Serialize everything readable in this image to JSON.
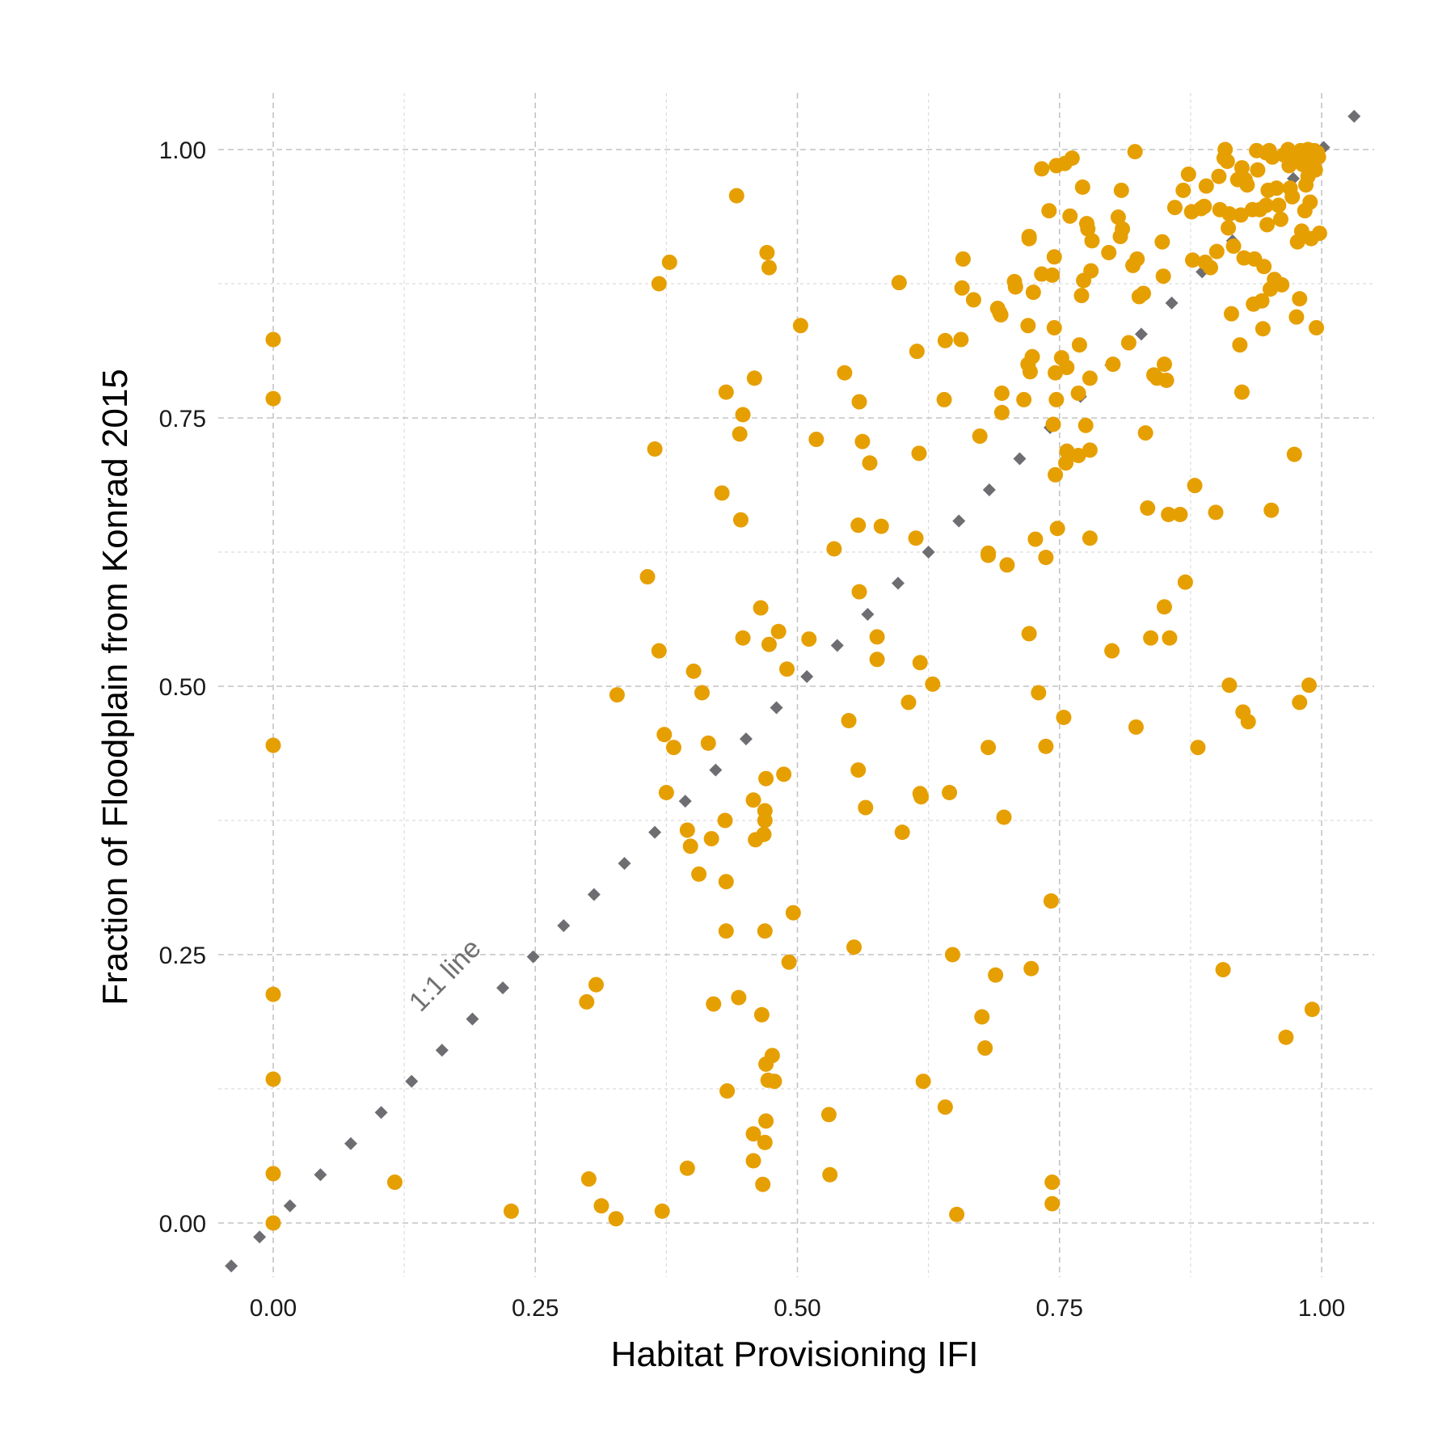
{
  "chart_data": {
    "type": "scatter",
    "xlabel": "Habitat Provisioning IFI",
    "ylabel": "Fraction of Floodplain from Konrad 2015",
    "xlim": [
      -0.05,
      1.05
    ],
    "ylim": [
      -0.05,
      1.05
    ],
    "x_ticks": [
      "0.00",
      "0.25",
      "0.50",
      "0.75",
      "1.00"
    ],
    "y_ticks": [
      "0.00",
      "0.25",
      "0.50",
      "0.75",
      "1.00"
    ],
    "grid": true,
    "point_color": "#E69F00",
    "reference_line_color": "#6e6e72",
    "annotation": "1:1 line",
    "reference_line": [
      [
        -0.04,
        -0.04
      ],
      [
        -0.013,
        -0.013
      ],
      [
        0.016,
        0.016
      ],
      [
        0.045,
        0.045
      ],
      [
        0.074,
        0.074
      ],
      [
        0.103,
        0.103
      ],
      [
        0.132,
        0.132
      ],
      [
        0.161,
        0.161
      ],
      [
        0.19,
        0.19
      ],
      [
        0.219,
        0.219
      ],
      [
        0.248,
        0.248
      ],
      [
        0.277,
        0.277
      ],
      [
        0.306,
        0.306
      ],
      [
        0.335,
        0.335
      ],
      [
        0.364,
        0.364
      ],
      [
        0.393,
        0.393
      ],
      [
        0.422,
        0.422
      ],
      [
        0.451,
        0.451
      ],
      [
        0.48,
        0.48
      ],
      [
        0.509,
        0.509
      ],
      [
        0.538,
        0.538
      ],
      [
        0.567,
        0.567
      ],
      [
        0.596,
        0.596
      ],
      [
        0.625,
        0.625
      ],
      [
        0.654,
        0.654
      ],
      [
        0.683,
        0.683
      ],
      [
        0.712,
        0.712
      ],
      [
        0.741,
        0.741
      ],
      [
        0.77,
        0.77
      ],
      [
        0.799,
        0.799
      ],
      [
        0.828,
        0.828
      ],
      [
        0.857,
        0.857
      ],
      [
        0.886,
        0.886
      ],
      [
        0.915,
        0.915
      ],
      [
        0.944,
        0.944
      ],
      [
        0.973,
        0.973
      ],
      [
        1.002,
        1.002
      ],
      [
        1.031,
        1.031
      ]
    ],
    "points": [
      [
        0.0,
        0.823
      ],
      [
        0.0,
        0.768
      ],
      [
        0.0,
        0.445
      ],
      [
        0.0,
        0.213
      ],
      [
        0.0,
        0.134
      ],
      [
        0.0,
        0.046
      ],
      [
        0.0,
        0.0
      ],
      [
        0.116,
        0.038
      ],
      [
        0.227,
        0.011
      ],
      [
        0.299,
        0.206
      ],
      [
        0.301,
        0.041
      ],
      [
        0.308,
        0.222
      ],
      [
        0.313,
        0.016
      ],
      [
        0.327,
        0.004
      ],
      [
        0.328,
        0.492
      ],
      [
        0.357,
        0.602
      ],
      [
        0.364,
        0.721
      ],
      [
        0.368,
        0.875
      ],
      [
        0.368,
        0.533
      ],
      [
        0.371,
        0.011
      ],
      [
        0.373,
        0.455
      ],
      [
        0.375,
        0.401
      ],
      [
        0.378,
        0.895
      ],
      [
        0.382,
        0.443
      ],
      [
        0.395,
        0.366
      ],
      [
        0.395,
        0.051
      ],
      [
        0.398,
        0.351
      ],
      [
        0.401,
        0.514
      ],
      [
        0.406,
        0.325
      ],
      [
        0.409,
        0.494
      ],
      [
        0.415,
        0.447
      ],
      [
        0.418,
        0.358
      ],
      [
        0.42,
        0.204
      ],
      [
        0.428,
        0.68
      ],
      [
        0.431,
        0.375
      ],
      [
        0.432,
        0.774
      ],
      [
        0.432,
        0.318
      ],
      [
        0.432,
        0.272
      ],
      [
        0.433,
        0.123
      ],
      [
        0.442,
        0.957
      ],
      [
        0.444,
        0.21
      ],
      [
        0.445,
        0.735
      ],
      [
        0.446,
        0.655
      ],
      [
        0.448,
        0.753
      ],
      [
        0.448,
        0.545
      ],
      [
        0.458,
        0.394
      ],
      [
        0.458,
        0.083
      ],
      [
        0.458,
        0.058
      ],
      [
        0.459,
        0.787
      ],
      [
        0.46,
        0.357
      ],
      [
        0.465,
        0.573
      ],
      [
        0.466,
        0.194
      ],
      [
        0.467,
        0.036
      ],
      [
        0.468,
        0.362
      ],
      [
        0.469,
        0.384
      ],
      [
        0.469,
        0.375
      ],
      [
        0.469,
        0.272
      ],
      [
        0.469,
        0.075
      ],
      [
        0.47,
        0.414
      ],
      [
        0.47,
        0.148
      ],
      [
        0.47,
        0.095
      ],
      [
        0.471,
        0.904
      ],
      [
        0.472,
        0.133
      ],
      [
        0.473,
        0.89
      ],
      [
        0.473,
        0.539
      ],
      [
        0.476,
        0.156
      ],
      [
        0.478,
        0.132
      ],
      [
        0.482,
        0.551
      ],
      [
        0.487,
        0.418
      ],
      [
        0.49,
        0.516
      ],
      [
        0.492,
        0.243
      ],
      [
        0.496,
        0.289
      ],
      [
        0.503,
        0.836
      ],
      [
        0.511,
        0.544
      ],
      [
        0.518,
        0.73
      ],
      [
        0.53,
        0.101
      ],
      [
        0.531,
        0.045
      ],
      [
        0.535,
        0.628
      ],
      [
        0.545,
        0.792
      ],
      [
        0.549,
        0.468
      ],
      [
        0.554,
        0.257
      ],
      [
        0.558,
        0.65
      ],
      [
        0.558,
        0.422
      ],
      [
        0.559,
        0.765
      ],
      [
        0.559,
        0.588
      ],
      [
        0.562,
        0.728
      ],
      [
        0.565,
        0.387
      ],
      [
        0.569,
        0.708
      ],
      [
        0.597,
        0.876
      ],
      [
        0.6,
        0.364
      ],
      [
        0.576,
        0.546
      ],
      [
        0.576,
        0.525
      ],
      [
        0.58,
        0.649
      ],
      [
        0.606,
        0.485
      ],
      [
        0.613,
        0.638
      ],
      [
        0.614,
        0.812
      ],
      [
        0.616,
        0.717
      ],
      [
        0.617,
        0.522
      ],
      [
        0.617,
        0.4
      ],
      [
        0.618,
        0.397
      ],
      [
        0.62,
        0.132
      ],
      [
        0.629,
        0.502
      ],
      [
        0.64,
        0.767
      ],
      [
        0.641,
        0.822
      ],
      [
        0.641,
        0.108
      ],
      [
        0.645,
        0.401
      ],
      [
        0.648,
        0.25
      ],
      [
        0.652,
        0.008
      ],
      [
        0.656,
        0.823
      ],
      [
        0.657,
        0.871
      ],
      [
        0.658,
        0.898
      ],
      [
        0.668,
        0.86
      ],
      [
        0.674,
        0.733
      ],
      [
        0.676,
        0.192
      ],
      [
        0.679,
        0.163
      ],
      [
        0.682,
        0.624
      ],
      [
        0.682,
        0.622
      ],
      [
        0.682,
        0.443
      ],
      [
        0.689,
        0.231
      ],
      [
        0.691,
        0.852
      ],
      [
        0.693,
        0.848
      ],
      [
        0.694,
        0.846
      ],
      [
        0.695,
        0.773
      ],
      [
        0.695,
        0.755
      ],
      [
        0.697,
        0.378
      ],
      [
        0.7,
        0.613
      ],
      [
        0.707,
        0.877
      ],
      [
        0.708,
        0.872
      ],
      [
        0.716,
        0.767
      ],
      [
        0.72,
        0.836
      ],
      [
        0.72,
        0.8
      ],
      [
        0.721,
        0.919
      ],
      [
        0.721,
        0.917
      ],
      [
        0.721,
        0.549
      ],
      [
        0.722,
        0.793
      ],
      [
        0.723,
        0.237
      ],
      [
        0.724,
        0.807
      ],
      [
        0.725,
        0.867
      ],
      [
        0.727,
        0.637
      ],
      [
        0.73,
        0.494
      ],
      [
        0.733,
        0.982
      ],
      [
        0.733,
        0.884
      ],
      [
        0.737,
        0.62
      ],
      [
        0.737,
        0.444
      ],
      [
        0.74,
        0.943
      ],
      [
        0.742,
        0.3
      ],
      [
        0.743,
        0.883
      ],
      [
        0.743,
        0.038
      ],
      [
        0.743,
        0.018
      ],
      [
        0.744,
        0.744
      ],
      [
        0.745,
        0.834
      ],
      [
        0.745,
        0.9
      ],
      [
        0.746,
        0.792
      ],
      [
        0.746,
        0.697
      ],
      [
        0.747,
        0.985
      ],
      [
        0.747,
        0.767
      ],
      [
        0.748,
        0.647
      ],
      [
        0.752,
        0.806
      ],
      [
        0.754,
        0.471
      ],
      [
        0.755,
        0.987
      ],
      [
        0.756,
        0.708
      ],
      [
        0.757,
        0.719
      ],
      [
        0.757,
        0.797
      ],
      [
        0.76,
        0.938
      ],
      [
        0.762,
        0.992
      ],
      [
        0.768,
        0.715
      ],
      [
        0.768,
        0.773
      ],
      [
        0.769,
        0.818
      ],
      [
        0.771,
        0.864
      ],
      [
        0.772,
        0.965
      ],
      [
        0.773,
        0.878
      ],
      [
        0.775,
        0.743
      ],
      [
        0.776,
        0.931
      ],
      [
        0.777,
        0.926
      ],
      [
        0.779,
        0.638
      ],
      [
        0.779,
        0.787
      ],
      [
        0.779,
        0.72
      ],
      [
        0.78,
        0.887
      ],
      [
        0.781,
        0.915
      ],
      [
        0.797,
        0.904
      ],
      [
        0.8,
        0.533
      ],
      [
        0.801,
        0.8
      ],
      [
        0.806,
        0.937
      ],
      [
        0.808,
        0.919
      ],
      [
        0.809,
        0.962
      ],
      [
        0.81,
        0.926
      ],
      [
        0.816,
        0.82
      ],
      [
        0.82,
        0.892
      ],
      [
        0.822,
        0.998
      ],
      [
        0.823,
        0.462
      ],
      [
        0.824,
        0.898
      ],
      [
        0.826,
        0.863
      ],
      [
        0.83,
        0.866
      ],
      [
        0.832,
        0.736
      ],
      [
        0.834,
        0.666
      ],
      [
        0.837,
        0.545
      ],
      [
        0.84,
        0.79
      ],
      [
        0.843,
        0.787
      ],
      [
        0.848,
        0.914
      ],
      [
        0.849,
        0.882
      ],
      [
        0.85,
        0.8
      ],
      [
        0.85,
        0.574
      ],
      [
        0.852,
        0.785
      ],
      [
        0.854,
        0.66
      ],
      [
        0.855,
        0.545
      ],
      [
        0.86,
        0.946
      ],
      [
        0.865,
        0.66
      ],
      [
        0.868,
        0.962
      ],
      [
        0.87,
        0.597
      ],
      [
        0.873,
        0.977
      ],
      [
        0.876,
        0.942
      ],
      [
        0.877,
        0.897
      ],
      [
        0.879,
        0.687
      ],
      [
        0.882,
        0.443
      ],
      [
        0.885,
        0.945
      ],
      [
        0.888,
        0.947
      ],
      [
        0.889,
        0.895
      ],
      [
        0.89,
        0.966
      ],
      [
        0.894,
        0.89
      ],
      [
        0.899,
        0.662
      ],
      [
        0.9,
        0.905
      ],
      [
        0.902,
        0.975
      ],
      [
        0.903,
        0.944
      ],
      [
        0.906,
        0.236
      ],
      [
        0.907,
        0.992
      ],
      [
        0.908,
        1.0
      ],
      [
        0.91,
        0.989
      ],
      [
        0.911,
        0.927
      ],
      [
        0.912,
        0.94
      ],
      [
        0.912,
        0.501
      ],
      [
        0.914,
        0.847
      ],
      [
        0.916,
        0.91
      ],
      [
        0.92,
        0.972
      ],
      [
        0.922,
        0.818
      ],
      [
        0.923,
        0.939
      ],
      [
        0.924,
        0.774
      ],
      [
        0.924,
        0.983
      ],
      [
        0.925,
        0.476
      ],
      [
        0.926,
        0.899
      ],
      [
        0.927,
        0.972
      ],
      [
        0.929,
        0.967
      ],
      [
        0.93,
        0.467
      ],
      [
        0.934,
        0.944
      ],
      [
        0.935,
        0.856
      ],
      [
        0.936,
        0.898
      ],
      [
        0.938,
        0.999
      ],
      [
        0.939,
        0.981
      ],
      [
        0.941,
        0.944
      ],
      [
        0.943,
        0.859
      ],
      [
        0.944,
        0.833
      ],
      [
        0.945,
        0.891
      ],
      [
        0.947,
        0.948
      ],
      [
        0.947,
        0.997
      ],
      [
        0.948,
        0.93
      ],
      [
        0.949,
        0.962
      ],
      [
        0.95,
        0.999
      ],
      [
        0.951,
        0.87
      ],
      [
        0.952,
        0.664
      ],
      [
        0.953,
        0.993
      ],
      [
        0.955,
        0.879
      ],
      [
        0.957,
        0.964
      ],
      [
        0.959,
        0.948
      ],
      [
        0.961,
        0.935
      ],
      [
        0.962,
        0.874
      ],
      [
        0.964,
        0.995
      ],
      [
        0.966,
        0.173
      ],
      [
        0.968,
        1.0
      ],
      [
        0.969,
        0.985
      ],
      [
        0.97,
        0.964
      ],
      [
        0.972,
        0.956
      ],
      [
        0.974,
        0.716
      ],
      [
        0.975,
        0.99
      ],
      [
        0.976,
        0.844
      ],
      [
        0.977,
        0.914
      ],
      [
        0.979,
        0.861
      ],
      [
        0.979,
        0.485
      ],
      [
        0.98,
        0.999
      ],
      [
        0.981,
        0.924
      ],
      [
        0.982,
        0.986
      ],
      [
        0.984,
        0.943
      ],
      [
        0.985,
        0.967
      ],
      [
        0.986,
        0.996
      ],
      [
        0.987,
        1.0
      ],
      [
        0.987,
        0.975
      ],
      [
        0.988,
        0.501
      ],
      [
        0.989,
        0.951
      ],
      [
        0.99,
        0.917
      ],
      [
        0.991,
        0.199
      ],
      [
        0.992,
        0.987
      ],
      [
        0.993,
        0.999
      ],
      [
        0.994,
        0.981
      ],
      [
        0.995,
        0.834
      ],
      [
        0.996,
        0.997
      ],
      [
        0.997,
        0.993
      ],
      [
        0.998,
        0.922
      ]
    ]
  }
}
